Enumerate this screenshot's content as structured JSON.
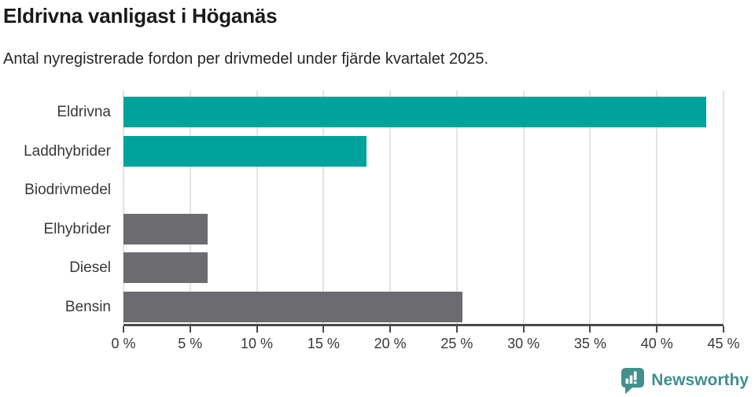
{
  "header": {
    "title": "Eldrivna vanligast i Höganäs",
    "subtitle": "Antal nyregistrerade fordon per drivmedel under fjärde kvartalet 2025."
  },
  "chart_data": {
    "type": "bar",
    "orientation": "horizontal",
    "title": "Eldrivna vanligast i Höganäs",
    "subtitle": "Antal nyregistrerade fordon per drivmedel under fjärde kvartalet 2025.",
    "categories": [
      "Eldrivna",
      "Laddhybrider",
      "Biodrivmedel",
      "Elhybrider",
      "Diesel",
      "Bensin"
    ],
    "values": [
      43.7,
      18.2,
      0,
      6.3,
      6.3,
      25.4
    ],
    "bar_colors": [
      "#00a39b",
      "#00a39b",
      "#00a39b",
      "#6b6b70",
      "#6b6b70",
      "#6b6b70"
    ],
    "unit": "%",
    "xlim": [
      0,
      45
    ],
    "x_ticks": [
      0,
      5,
      10,
      15,
      20,
      25,
      30,
      35,
      40,
      45
    ],
    "x_tick_labels": [
      "0 %",
      "5 %",
      "10 %",
      "15 %",
      "20 %",
      "25 %",
      "30 %",
      "35 %",
      "40 %",
      "45 %"
    ],
    "grid": "vertical",
    "legend_position": "none"
  },
  "footer": {
    "brand": "Newsworthy",
    "brand_color": "#41908e"
  },
  "colors": {
    "teal": "#00a39b",
    "gray": "#6b6b70",
    "axis": "#4a4a4a",
    "gridline": "#e4e4e4",
    "title_text": "#1a1a1a",
    "body_text": "#383838"
  }
}
